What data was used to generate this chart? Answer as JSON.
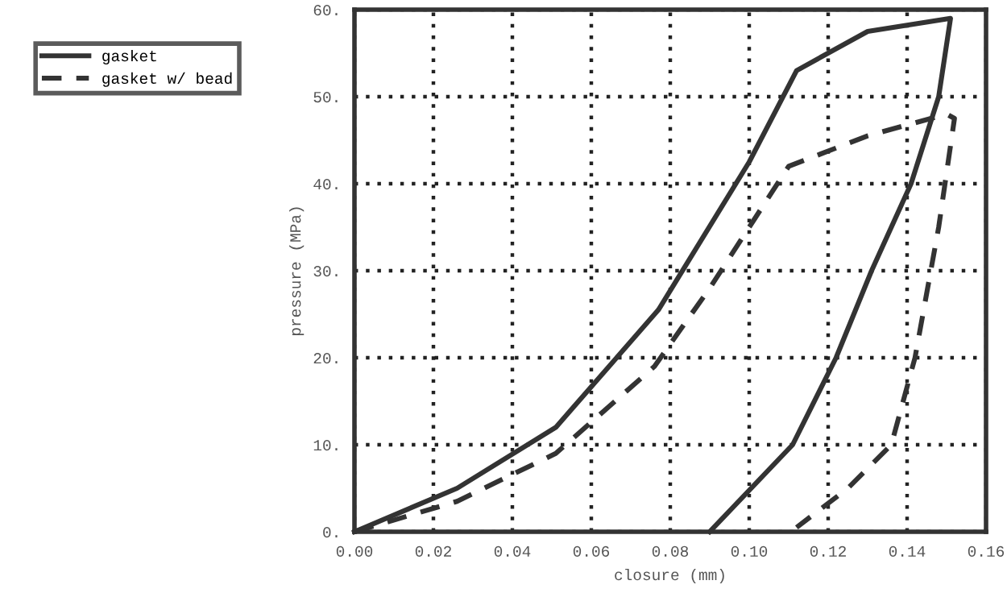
{
  "chart_data": {
    "type": "line",
    "xlabel": "closure (mm)",
    "ylabel": "pressure (MPa)",
    "xlim": [
      0,
      0.16
    ],
    "ylim": [
      0,
      60
    ],
    "xticks": [
      {
        "value": 0,
        "label": "0.00"
      },
      {
        "value": 0.02,
        "label": "0.02"
      },
      {
        "value": 0.04,
        "label": "0.04"
      },
      {
        "value": 0.06,
        "label": "0.06"
      },
      {
        "value": 0.08,
        "label": "0.08"
      },
      {
        "value": 0.1,
        "label": "0.10"
      },
      {
        "value": 0.12,
        "label": "0.12"
      },
      {
        "value": 0.14,
        "label": "0.14"
      },
      {
        "value": 0.16,
        "label": "0.16"
      }
    ],
    "yticks": [
      {
        "value": 0,
        "label": "0."
      },
      {
        "value": 10,
        "label": "10."
      },
      {
        "value": 20,
        "label": "20."
      },
      {
        "value": 30,
        "label": "30."
      },
      {
        "value": 40,
        "label": "40."
      },
      {
        "value": 50,
        "label": "50."
      },
      {
        "value": 60,
        "label": "60."
      }
    ],
    "grid": true,
    "legend": "left",
    "marker": "none",
    "series": [
      {
        "name": "gasket",
        "color": "#333333",
        "line_style": "solid",
        "x": [
          0,
          0.026,
          0.051,
          0.077,
          0.1,
          0.112,
          0.13,
          0.151,
          0.148,
          0.141,
          0.131,
          0.122,
          0.111,
          0.09
        ],
        "values": [
          0,
          5,
          12,
          25.5,
          42.5,
          53,
          57.5,
          59,
          50,
          40,
          30,
          20,
          10,
          0
        ]
      },
      {
        "name": "gasket w/ bead",
        "color": "#333333",
        "line_style": "dashed",
        "x": [
          0,
          0.026,
          0.051,
          0.076,
          0.09,
          0.11,
          0.13,
          0.15,
          0.152,
          0.148,
          0.142,
          0.136,
          0.125,
          0.112
        ],
        "values": [
          0,
          3.5,
          9,
          19,
          28,
          42,
          45.5,
          48,
          47.5,
          35,
          20,
          10,
          5,
          0.5
        ]
      }
    ]
  }
}
